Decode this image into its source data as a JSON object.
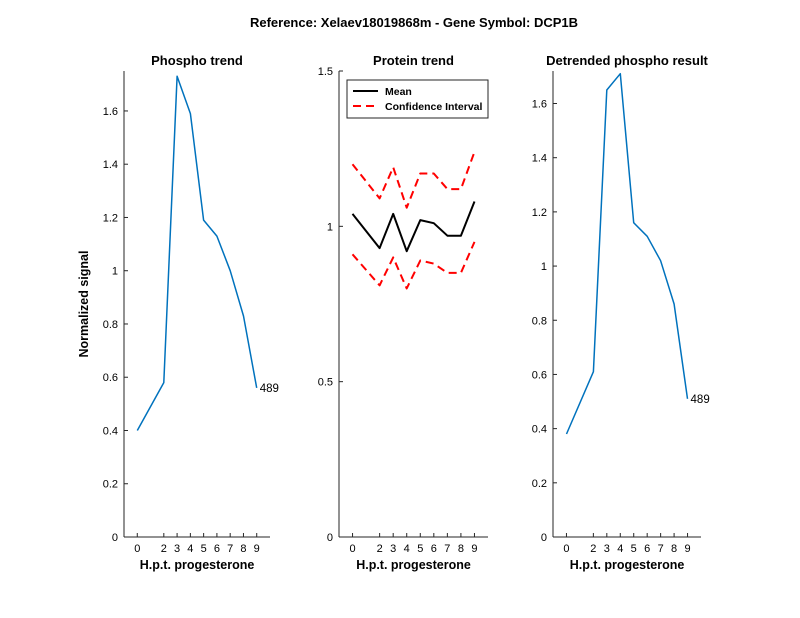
{
  "figure": {
    "suptitle": "Reference:  Xelaev18019868m - Gene Symbol:  DCP1B"
  },
  "chart_data": [
    {
      "type": "line",
      "title": "Phospho trend",
      "xlabel": "H.p.t. progesterone",
      "ylabel": "Normalized signal",
      "x": [
        0,
        2,
        3,
        4,
        5,
        6,
        7,
        8,
        9
      ],
      "xticks": [
        "0",
        "2",
        "3",
        "4",
        "5",
        "6",
        "7",
        "8",
        "9"
      ],
      "yticks": [
        "0",
        "0.2",
        "0.4",
        "0.6",
        "0.8",
        "1",
        "1.2",
        "1.4",
        "1.6"
      ],
      "ylim": [
        0,
        1.75
      ],
      "series": [
        {
          "color": "#0072BD",
          "values": [
            0.4,
            0.58,
            1.73,
            1.59,
            1.19,
            1.13,
            1.0,
            0.83,
            0.56
          ]
        }
      ],
      "annotation": "489"
    },
    {
      "type": "line",
      "title": "Protein trend",
      "xlabel": "H.p.t. progesterone",
      "ylabel": "",
      "x": [
        0,
        2,
        3,
        4,
        5,
        6,
        7,
        8,
        9
      ],
      "xticks": [
        "0",
        "2",
        "3",
        "4",
        "5",
        "6",
        "7",
        "8",
        "9"
      ],
      "yticks": [
        "0",
        "0.5",
        "1",
        "1.5"
      ],
      "ylim": [
        0,
        1.5
      ],
      "legend_position": "top",
      "series": [
        {
          "name": "Mean",
          "color": "#000000",
          "style": "solid",
          "values": [
            1.04,
            0.93,
            1.04,
            0.92,
            1.02,
            1.01,
            0.97,
            0.97,
            1.08
          ]
        },
        {
          "name": "Confidence Interval",
          "color": "#ff0000",
          "style": "dashed",
          "values": [
            1.2,
            1.09,
            1.19,
            1.06,
            1.17,
            1.17,
            1.12,
            1.12,
            1.24
          ]
        },
        {
          "color": "#ff0000",
          "style": "dashed",
          "values": [
            0.91,
            0.81,
            0.9,
            0.8,
            0.89,
            0.88,
            0.85,
            0.85,
            0.95
          ]
        }
      ]
    },
    {
      "type": "line",
      "title": "Detrended phospho result",
      "xlabel": "H.p.t. progesterone",
      "ylabel": "",
      "x": [
        0,
        2,
        3,
        4,
        5,
        6,
        7,
        8,
        9
      ],
      "xticks": [
        "0",
        "2",
        "3",
        "4",
        "5",
        "6",
        "7",
        "8",
        "9"
      ],
      "yticks": [
        "0",
        "0.2",
        "0.4",
        "0.6",
        "0.8",
        "1",
        "1.2",
        "1.4",
        "1.6"
      ],
      "ylim": [
        0,
        1.72
      ],
      "series": [
        {
          "color": "#0072BD",
          "values": [
            0.38,
            0.61,
            1.65,
            1.71,
            1.16,
            1.11,
            1.02,
            0.86,
            0.51
          ]
        }
      ],
      "annotation": "489"
    }
  ]
}
